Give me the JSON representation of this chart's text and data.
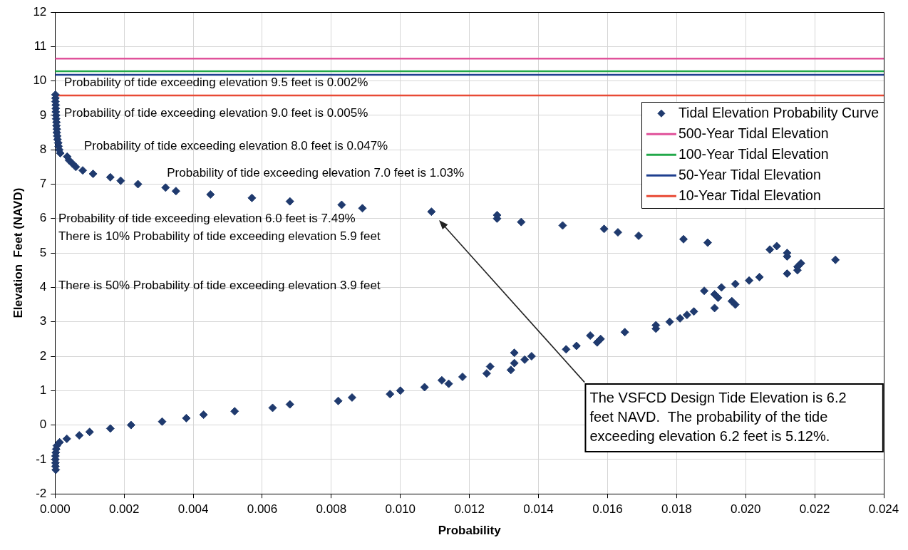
{
  "chart_data": {
    "type": "scatter",
    "xlabel": "Probability",
    "ylabel": "Elevation  Feet (NAVD)",
    "xlim": [
      0,
      0.024
    ],
    "xticks": [
      {
        "value": 0,
        "label": "0.000"
      },
      {
        "value": 0.002,
        "label": "0.002"
      },
      {
        "value": 0.004,
        "label": "0.004"
      },
      {
        "value": 0.006,
        "label": "0.006"
      },
      {
        "value": 0.008,
        "label": "0.008"
      },
      {
        "value": 0.01,
        "label": "0.010"
      },
      {
        "value": 0.012,
        "label": "0.012"
      },
      {
        "value": 0.014,
        "label": "0.014"
      },
      {
        "value": 0.016,
        "label": "0.016"
      },
      {
        "value": 0.018,
        "label": "0.018"
      },
      {
        "value": 0.02,
        "label": "0.020"
      },
      {
        "value": 0.022,
        "label": "0.022"
      },
      {
        "value": 0.024,
        "label": "0.024"
      }
    ],
    "ylim": [
      -2,
      12
    ],
    "yticks": [
      -2,
      -1,
      0,
      1,
      2,
      3,
      4,
      5,
      6,
      7,
      8,
      9,
      10,
      11,
      12
    ],
    "grid": true,
    "legend": "top right",
    "series": [
      {
        "name": "Tidal Elevation Probability Curve",
        "type": "scatter",
        "marker": "diamond",
        "color": "#1f3a6e",
        "x": [
          2e-05,
          1e-05,
          1e-05,
          1e-05,
          1e-05,
          2e-05,
          3e-05,
          5e-05,
          0.00013,
          0.00034,
          0.0007,
          0.001,
          0.0016,
          0.0022,
          0.0031,
          0.0038,
          0.0043,
          0.0052,
          0.0063,
          0.0068,
          0.0082,
          0.0086,
          0.0097,
          0.01,
          0.0107,
          0.0114,
          0.0112,
          0.0118,
          0.0125,
          0.0132,
          0.0126,
          0.0133,
          0.0136,
          0.0138,
          0.0133,
          0.0148,
          0.0151,
          0.0157,
          0.0158,
          0.0155,
          0.0165,
          0.0174,
          0.0174,
          0.0178,
          0.0181,
          0.0183,
          0.0185,
          0.0191,
          0.0197,
          0.0196,
          0.0192,
          0.0191,
          0.0188,
          0.0193,
          0.0197,
          0.0201,
          0.0204,
          0.0212,
          0.0215,
          0.0215,
          0.0216,
          0.0226,
          0.0212,
          0.0212,
          0.0207,
          0.0209,
          0.0189,
          0.0182,
          0.0169,
          0.0163,
          0.0159,
          0.0147,
          0.0135,
          0.0128,
          0.0128,
          0.0109,
          0.0089,
          0.0083,
          0.0068,
          0.0057,
          0.0045,
          0.0035,
          0.0032,
          0.0024,
          0.0019,
          0.0016,
          0.0011,
          0.0008,
          0.0006,
          0.0005,
          0.0004,
          0.00035,
          0.00015,
          0.00012,
          0.0001,
          9e-05,
          7e-05,
          6e-05,
          5e-05,
          5e-05,
          4e-05,
          4e-05,
          3e-05,
          3e-05,
          2e-05,
          2e-05,
          2e-05,
          1e-05,
          1e-05,
          1e-05
        ],
        "values": [
          -1.3,
          -1.2,
          -1.1,
          -1.0,
          -0.9,
          -0.8,
          -0.7,
          -0.6,
          -0.5,
          -0.4,
          -0.3,
          -0.2,
          -0.1,
          0,
          0.1,
          0.2,
          0.3,
          0.4,
          0.5,
          0.6,
          0.7,
          0.8,
          0.9,
          1.0,
          1.1,
          1.2,
          1.3,
          1.4,
          1.5,
          1.6,
          1.7,
          1.8,
          1.9,
          2.0,
          2.1,
          2.2,
          2.3,
          2.4,
          2.5,
          2.6,
          2.7,
          2.8,
          2.9,
          3.0,
          3.1,
          3.2,
          3.3,
          3.4,
          3.5,
          3.6,
          3.7,
          3.8,
          3.9,
          4.0,
          4.1,
          4.2,
          4.3,
          4.4,
          4.5,
          4.6,
          4.7,
          4.8,
          4.9,
          5.0,
          5.1,
          5.2,
          5.3,
          5.4,
          5.5,
          5.6,
          5.7,
          5.8,
          5.9,
          6.0,
          6.1,
          6.2,
          6.3,
          6.4,
          6.5,
          6.6,
          6.7,
          6.8,
          6.9,
          7.0,
          7.1,
          7.2,
          7.3,
          7.4,
          7.5,
          7.6,
          7.7,
          7.8,
          7.9,
          8.0,
          8.1,
          8.2,
          8.3,
          8.4,
          8.5,
          8.6,
          8.7,
          8.8,
          8.9,
          9.0,
          9.1,
          9.2,
          9.3,
          9.4,
          9.5,
          9.6
        ]
      },
      {
        "name": "500-Year Tidal Elevation",
        "type": "line",
        "color": "#e0529a",
        "x": [
          0,
          0.024
        ],
        "values": [
          10.65,
          10.65
        ]
      },
      {
        "name": "100-Year Tidal Elevation",
        "type": "line",
        "color": "#22a84a",
        "x": [
          0,
          0.024
        ],
        "values": [
          10.28,
          10.28
        ]
      },
      {
        "name": "50-Year Tidal Elevation",
        "type": "line",
        "color": "#1f3f8f",
        "x": [
          0,
          0.024
        ],
        "values": [
          10.18,
          10.18
        ]
      },
      {
        "name": "10-Year Tidal Elevation",
        "type": "line",
        "color": "#e84a35",
        "x": [
          0,
          0.024
        ],
        "values": [
          9.58,
          9.58
        ]
      }
    ],
    "annotations": [
      "Probability of tide exceeding elevation 9.5 feet is 0.002%",
      "Probability of tide exceeding elevation 9.0 feet is 0.005%",
      "Probability of tide exceeding elevation 8.0 feet is 0.047%",
      "Probability of tide exceeding elevation 7.0 feet is 1.03%",
      "Probability of tide exceeding elevation 6.0 feet is 7.49%",
      "There is 10% Probability of tide exceeding elevation 5.9 feet",
      "There is 50% Probability of tide exceeding elevation 3.9 feet",
      "The VSFCD Design Tide Elevation is 6.2 feet NAVD.  The probability of the tide exceeding elevation 6.2 feet is 5.12%."
    ]
  }
}
